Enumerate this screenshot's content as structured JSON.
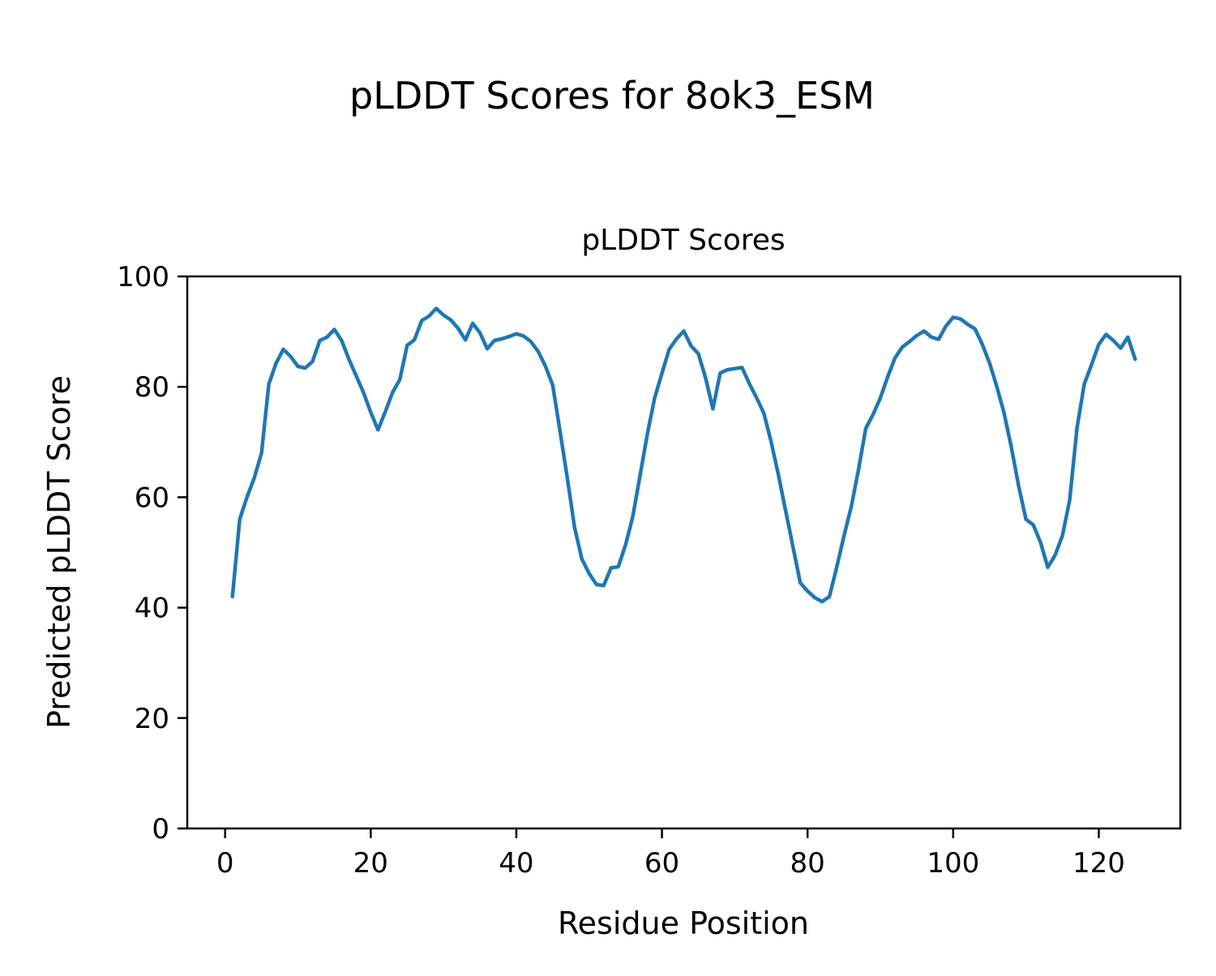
{
  "figure": {
    "title": "pLDDT Scores for 8ok3_ESM"
  },
  "chart_data": {
    "type": "line",
    "title": "pLDDT Scores",
    "xlabel": "Residue Position",
    "ylabel": "Predicted pLDDT Score",
    "series_color": "#1f77b4",
    "grid": false,
    "legend": "none",
    "xlim": [
      -5.2,
      131.2
    ],
    "ylim": [
      0,
      100
    ],
    "xticks": [
      0,
      20,
      40,
      60,
      80,
      100,
      120
    ],
    "yticks": [
      0,
      20,
      40,
      60,
      80,
      100
    ],
    "x_start": 1,
    "x": "residue index 1..125 (step 1)",
    "values": [
      42,
      56,
      60,
      63.5,
      68,
      80.5,
      84.3,
      86.8,
      85.5,
      83.7,
      83.4,
      84.6,
      88.4,
      89,
      90.4,
      88.4,
      85,
      82,
      79,
      75.4,
      72.2,
      75.5,
      79,
      81.3,
      87.5,
      88.5,
      92,
      92.8,
      94.2,
      93,
      92.1,
      90.6,
      88.5,
      91.5,
      89.8,
      86.9,
      88.4,
      88.7,
      89.1,
      89.6,
      89.2,
      88.2,
      86.4,
      83.7,
      80.3,
      72,
      63.5,
      54.5,
      48.8,
      46.2,
      44.2,
      44,
      47.2,
      47.4,
      51.4,
      56.5,
      64,
      71.5,
      78,
      82.5,
      86.8,
      88.7,
      90.1,
      87.4,
      86,
      81.6,
      76,
      82.5,
      83.1,
      83.3,
      83.5,
      80.6,
      78,
      75.2,
      70,
      64,
      57.5,
      51,
      44.5,
      43,
      41.8,
      41.1,
      42,
      47.3,
      53,
      58.3,
      65,
      72.5,
      75,
      78,
      81.8,
      85.2,
      87.2,
      88.2,
      89.3,
      90.1,
      89,
      88.6,
      91,
      92.6,
      92.3,
      91.3,
      90.5,
      87.7,
      84.3,
      80,
      75.2,
      69,
      62,
      56,
      55,
      51.8,
      47.3,
      49.5,
      53,
      59.5,
      72.5,
      80.5,
      84,
      87.7,
      89.5,
      88.4,
      87,
      89,
      85
    ]
  }
}
